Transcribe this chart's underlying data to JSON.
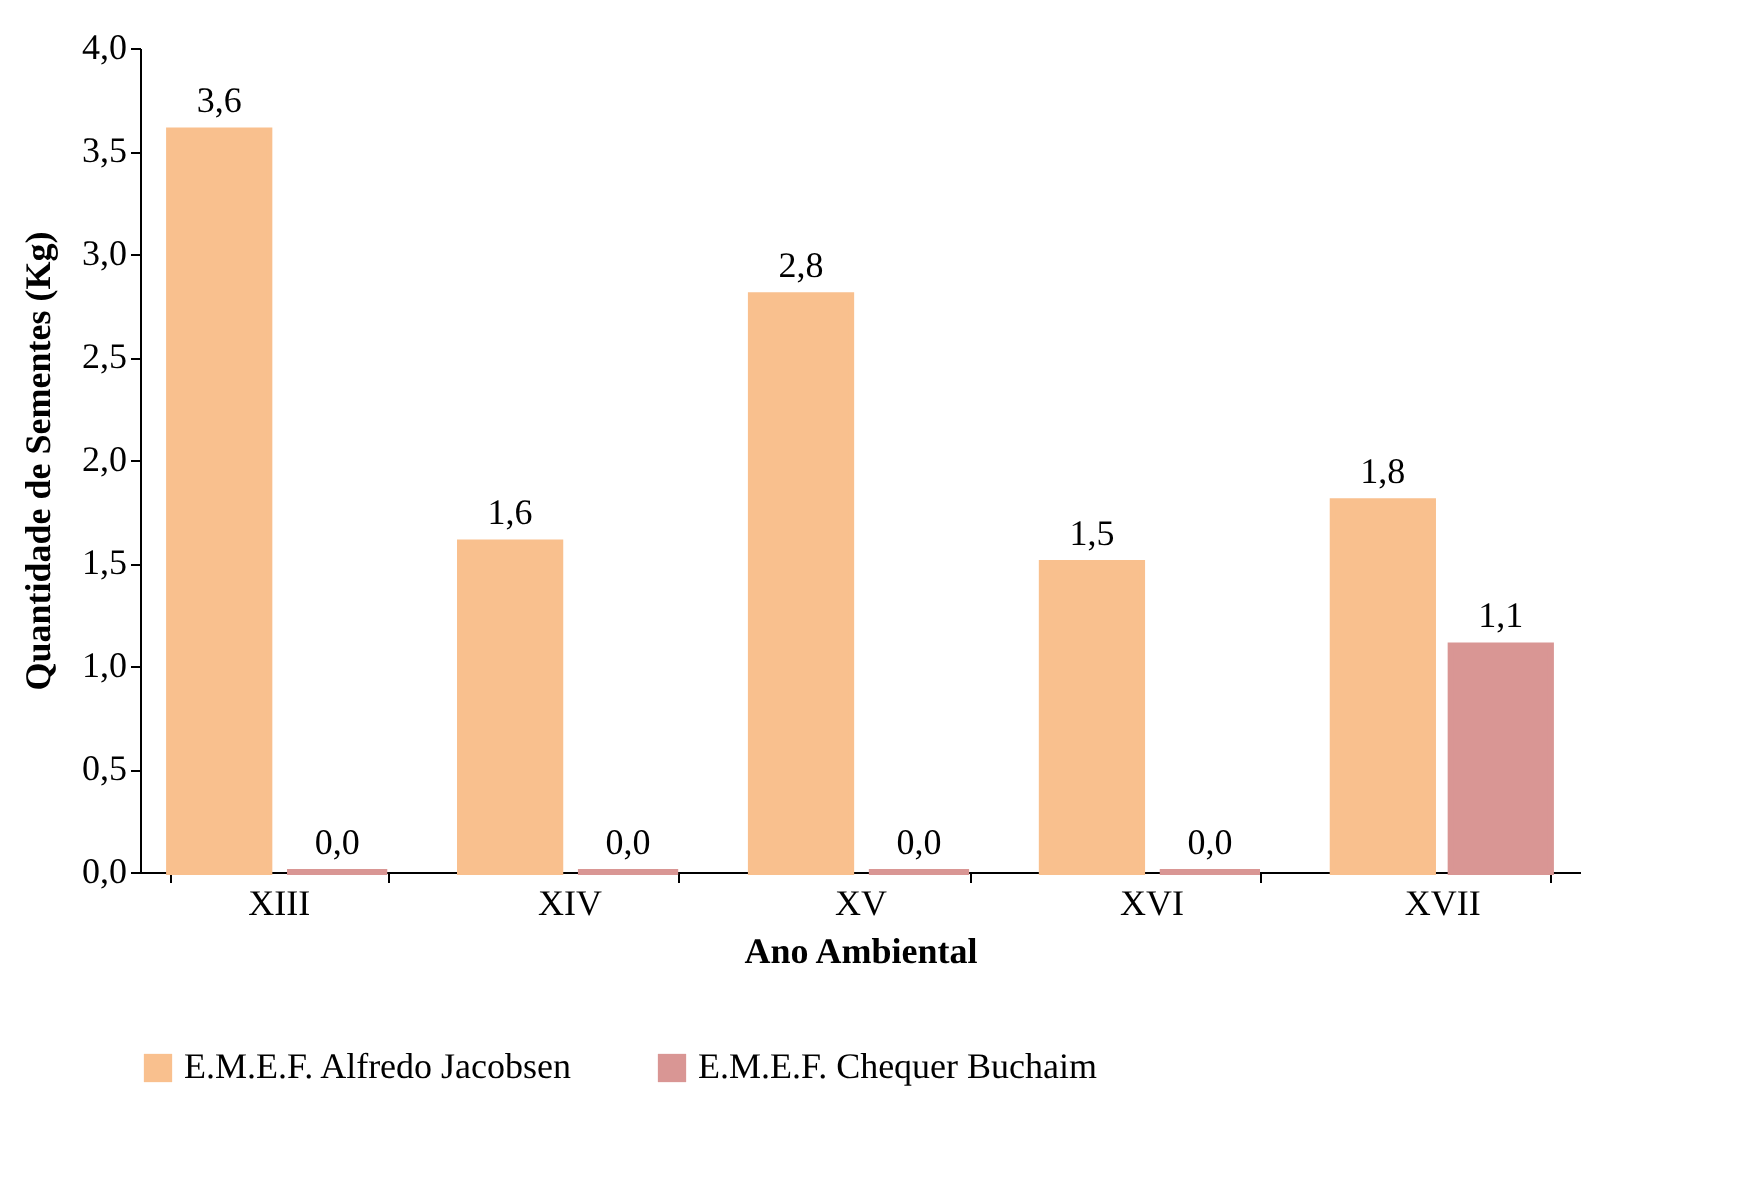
{
  "chart_data": {
    "type": "bar",
    "xlabel": "Ano Ambiental",
    "ylabel": "Quantidade de Sementes (Kg)",
    "categories": [
      "XIII",
      "XIV",
      "XV",
      "XVI",
      "XVII"
    ],
    "series": [
      {
        "name": "E.M.E.F. Alfredo Jacobsen",
        "color": "#f9c08e",
        "values": [
          3.6,
          1.6,
          2.8,
          1.5,
          1.8
        ],
        "value_labels": [
          "3,6",
          "1,6",
          "2,8",
          "1,5",
          "1,8"
        ]
      },
      {
        "name": "E.M.E.F. Chequer Buchaim",
        "color": "#d99694",
        "values": [
          0,
          0,
          0,
          0,
          1.1
        ],
        "value_labels": [
          "0,0",
          "0,0",
          "0,0",
          "0,0",
          "1,1"
        ]
      }
    ],
    "ylim": [
      0,
      4
    ],
    "yticks": [
      {
        "value": 0,
        "label": "0,0"
      },
      {
        "value": 0.5,
        "label": "0,5"
      },
      {
        "value": 1,
        "label": "1,0"
      },
      {
        "value": 1.5,
        "label": "1,5"
      },
      {
        "value": 2,
        "label": "2,0"
      },
      {
        "value": 2.5,
        "label": "2,5"
      },
      {
        "value": 3,
        "label": "3,0"
      },
      {
        "value": 3.5,
        "label": "3,5"
      },
      {
        "value": 4,
        "label": "4,0"
      }
    ],
    "grid": false,
    "legend": "bottom"
  }
}
